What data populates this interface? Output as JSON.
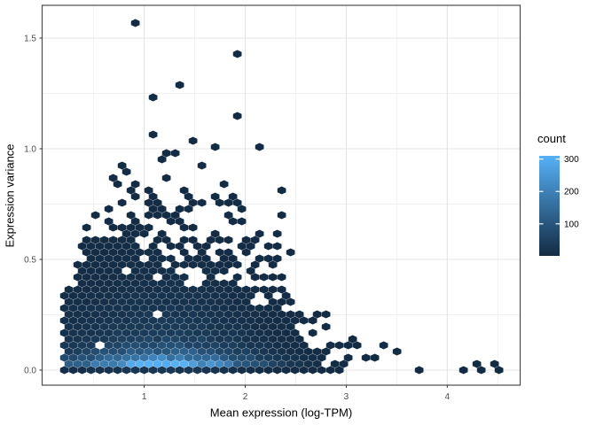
{
  "figure": {
    "background": "#FFFFFF"
  },
  "chart_data": {
    "type": "hexbin",
    "title": "",
    "xlabel": "Mean expression (log-TPM)",
    "ylabel": "Expression variance",
    "x_ticks": [
      "1",
      "2",
      "3",
      "4"
    ],
    "x_tick_values": [
      1,
      2,
      3,
      4
    ],
    "x_minor": [
      0.5,
      1.5,
      2.5,
      3.5,
      4.5
    ],
    "y_ticks": [
      "0.0",
      "0.5",
      "1.0",
      "1.5"
    ],
    "y_tick_values": [
      0,
      0.5,
      1.0,
      1.5
    ],
    "y_minor": [
      0.25,
      0.75,
      1.25
    ],
    "xlim": [
      -0.005,
      4.727
    ],
    "ylim": [
      -0.068,
      1.648
    ],
    "grid": true,
    "legend": {
      "title": "count",
      "tick_labels": [
        "300",
        "200",
        "100"
      ],
      "tick_values": [
        300,
        200,
        100
      ],
      "domain": [
        1,
        310
      ],
      "color_low": "#132B43",
      "color_high": "#56B1F7",
      "position": "right"
    },
    "hexbin": {
      "x_start": 0.21,
      "x_end_dense": 3.4,
      "seed": 20240613,
      "count_model": {
        "base": 2,
        "peak": 310,
        "center_x": 1.2,
        "sigma_left": 0.85,
        "sigma_right": 0.75,
        "row_factors": [
          0.06,
          1.0,
          0.62,
          0.35,
          0.22,
          0.15,
          0.11
        ],
        "row_decay": 0.18,
        "jitter": 0.25
      },
      "envelope": [
        [
          0.21,
          0.38
        ],
        [
          0.32,
          0.48
        ],
        [
          0.45,
          0.58
        ],
        [
          0.6,
          0.64
        ],
        [
          0.8,
          0.62
        ],
        [
          0.95,
          0.66
        ],
        [
          1.1,
          0.58
        ],
        [
          1.25,
          0.54
        ],
        [
          1.4,
          0.5
        ],
        [
          1.55,
          0.47
        ],
        [
          1.7,
          0.52
        ],
        [
          1.85,
          0.46
        ],
        [
          2.0,
          0.42
        ],
        [
          2.15,
          0.36
        ],
        [
          2.3,
          0.41
        ],
        [
          2.45,
          0.3
        ],
        [
          2.6,
          0.22
        ],
        [
          2.75,
          0.17
        ],
        [
          2.9,
          0.1
        ],
        [
          3.05,
          0.05
        ],
        [
          3.25,
          -0.02
        ]
      ],
      "fringe_limit": [
        [
          0.21,
          0.45
        ],
        [
          0.4,
          0.66
        ],
        [
          0.6,
          0.92
        ],
        [
          0.8,
          0.95
        ],
        [
          1.0,
          0.95
        ],
        [
          1.3,
          0.93
        ],
        [
          1.6,
          0.93
        ],
        [
          1.9,
          0.9
        ],
        [
          2.1,
          0.86
        ],
        [
          2.3,
          0.55
        ],
        [
          2.5,
          0.36
        ],
        [
          2.7,
          0.3
        ],
        [
          2.9,
          0.22
        ],
        [
          3.1,
          0.15
        ],
        [
          3.3,
          0.08
        ],
        [
          3.5,
          0.0
        ]
      ],
      "fringe_prob": [
        0.5,
        0.07
      ],
      "edge_drop": {
        "zone": 0.075,
        "prob": 0.35
      },
      "right_ragged": {
        "from_x": 2.45,
        "zone": 0.12,
        "prob": 0.3
      },
      "hole_prob": 0.012,
      "holes": [
        [
          1.09,
          0.42
        ],
        [
          1.44,
          0.42
        ],
        [
          1.55,
          0.4
        ],
        [
          1.75,
          0.43
        ],
        [
          1.01,
          0.49
        ],
        [
          1.94,
          0.38
        ],
        [
          2.0,
          0.43
        ],
        [
          2.1,
          0.32
        ],
        [
          2.18,
          0.31
        ],
        [
          1.12,
          0.25
        ]
      ],
      "outliers": [
        [
          0.94,
          1.56
        ],
        [
          1.94,
          1.43
        ],
        [
          1.38,
          1.29
        ],
        [
          1.08,
          1.22
        ],
        [
          1.89,
          1.14
        ],
        [
          1.07,
          1.06
        ],
        [
          1.46,
          1.03
        ],
        [
          1.67,
          1.0
        ],
        [
          2.12,
          1.0
        ],
        [
          1.21,
          0.99
        ],
        [
          1.27,
          0.97
        ],
        [
          1.18,
          0.95
        ],
        [
          2.32,
          0.81
        ],
        [
          2.33,
          0.7
        ],
        [
          2.3,
          0.61
        ],
        [
          2.24,
          0.55
        ],
        [
          2.36,
          0.55
        ],
        [
          2.44,
          0.52
        ],
        [
          2.3,
          0.5
        ],
        [
          3.37,
          0.12
        ],
        [
          3.54,
          0.07
        ],
        [
          3.71,
          0.01
        ],
        [
          4.13,
          0.01
        ],
        [
          4.26,
          0.04
        ],
        [
          4.31,
          0.01
        ],
        [
          4.44,
          0.04
        ],
        [
          4.49,
          0.01
        ]
      ]
    }
  },
  "style": {
    "panel_background": "#FFFFFF",
    "panel_border": "#4D4D4D",
    "grid_major": "#E4E4E4",
    "grid_minor": "#F1F1F1",
    "tick_color": "#333333",
    "tick_label_color": "#4D4D4D",
    "axis_title_color": "#000000",
    "legend_label_color": "#000000"
  }
}
